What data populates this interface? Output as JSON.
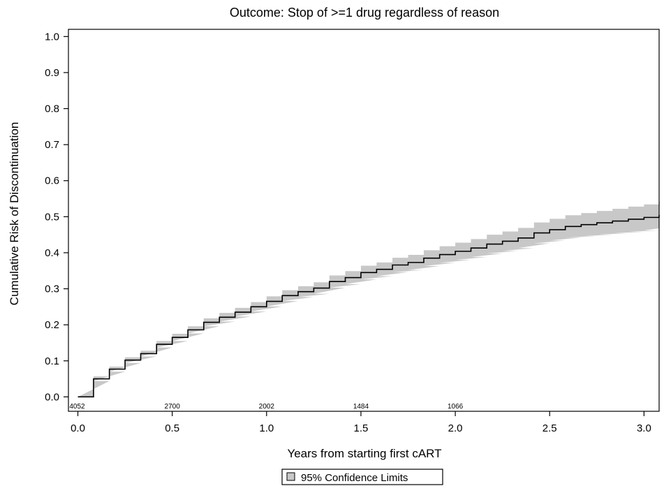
{
  "chart_data": {
    "type": "line",
    "title": "Outcome: Stop of >=1 drug regardless of reason",
    "xlabel": "Years from starting first cART",
    "ylabel": "Cumulative Risk of Discontinuation",
    "xlim": [
      -0.05,
      3.08
    ],
    "ylim": [
      -0.04,
      1.02
    ],
    "x_ticks": [
      "0.0",
      "0.5",
      "1.0",
      "1.5",
      "2.0",
      "2.5",
      "3.0"
    ],
    "y_ticks": [
      "0.0",
      "0.1",
      "0.2",
      "0.3",
      "0.4",
      "0.5",
      "0.6",
      "0.7",
      "0.8",
      "0.9",
      "1.0"
    ],
    "grid": false,
    "legend_position": "bottom-center",
    "band_color": "#c8c8c8",
    "line_color": "#000000",
    "series": [
      {
        "name": "95% Confidence Limits",
        "step": true,
        "x": [
          0.0,
          0.083,
          0.167,
          0.25,
          0.333,
          0.417,
          0.5,
          0.583,
          0.667,
          0.75,
          0.833,
          0.917,
          1.0,
          1.083,
          1.167,
          1.25,
          1.333,
          1.417,
          1.5,
          1.583,
          1.667,
          1.75,
          1.833,
          1.917,
          2.0,
          2.083,
          2.167,
          2.25,
          2.333,
          2.417,
          2.5,
          2.583,
          2.667,
          2.75,
          2.833,
          2.917,
          3.0,
          3.08
        ],
        "y": [
          0.0,
          0.05,
          0.077,
          0.102,
          0.12,
          0.146,
          0.165,
          0.186,
          0.207,
          0.221,
          0.235,
          0.25,
          0.265,
          0.281,
          0.292,
          0.302,
          0.32,
          0.331,
          0.345,
          0.354,
          0.366,
          0.373,
          0.385,
          0.395,
          0.404,
          0.413,
          0.424,
          0.432,
          0.441,
          0.455,
          0.464,
          0.473,
          0.478,
          0.483,
          0.488,
          0.493,
          0.498,
          0.505
        ],
        "lower": [
          0.0,
          0.044,
          0.07,
          0.094,
          0.112,
          0.137,
          0.155,
          0.176,
          0.196,
          0.209,
          0.223,
          0.237,
          0.251,
          0.266,
          0.277,
          0.286,
          0.303,
          0.313,
          0.326,
          0.335,
          0.346,
          0.352,
          0.363,
          0.372,
          0.38,
          0.388,
          0.398,
          0.405,
          0.413,
          0.426,
          0.434,
          0.442,
          0.446,
          0.45,
          0.454,
          0.458,
          0.462,
          0.468
        ],
        "upper": [
          0.0,
          0.057,
          0.084,
          0.11,
          0.128,
          0.155,
          0.175,
          0.196,
          0.218,
          0.233,
          0.247,
          0.263,
          0.279,
          0.296,
          0.307,
          0.318,
          0.337,
          0.349,
          0.364,
          0.373,
          0.386,
          0.394,
          0.407,
          0.418,
          0.428,
          0.438,
          0.45,
          0.459,
          0.469,
          0.484,
          0.494,
          0.504,
          0.51,
          0.516,
          0.522,
          0.528,
          0.534,
          0.542
        ]
      }
    ],
    "at_risk": [
      {
        "x": 0.0,
        "label": "4052"
      },
      {
        "x": 0.5,
        "label": "2700"
      },
      {
        "x": 1.0,
        "label": "2002"
      },
      {
        "x": 1.5,
        "label": "1484"
      },
      {
        "x": 2.0,
        "label": "1066"
      }
    ],
    "legend": {
      "label": "95% Confidence Limits"
    }
  }
}
